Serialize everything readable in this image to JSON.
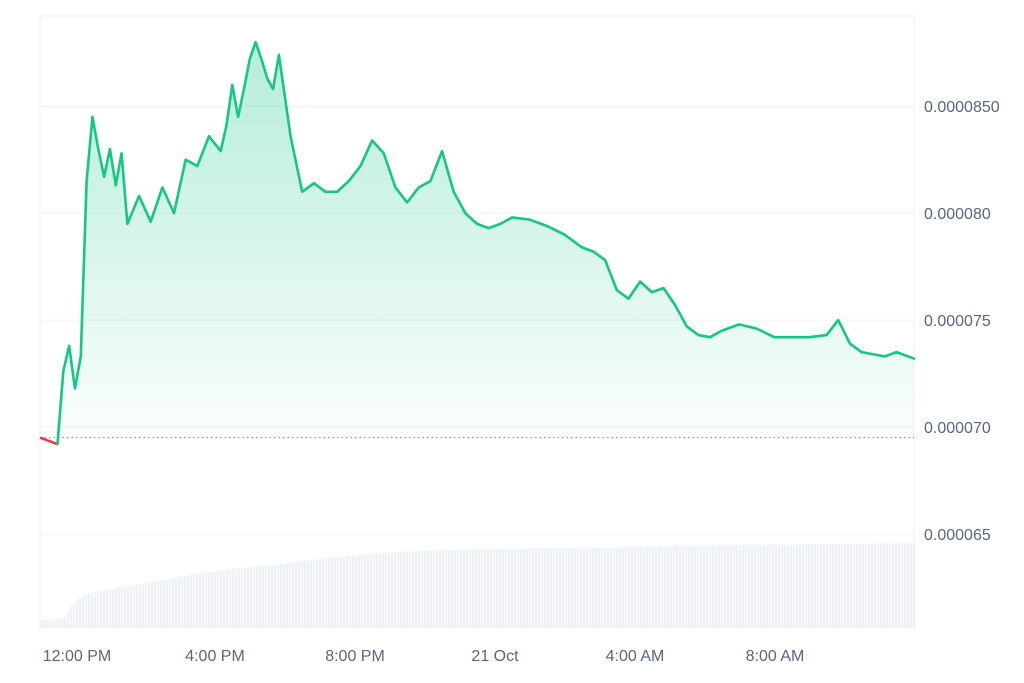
{
  "chart_data": {
    "type": "area",
    "x_axis_ticks": [
      "12:00 PM",
      "4:00 PM",
      "8:00 PM",
      "21 Oct",
      "4:00 AM",
      "8:00 AM"
    ],
    "y_axis_ticks": [
      "0.0000850",
      "0.000080",
      "0.000075",
      "0.000070",
      "0.000065"
    ],
    "y_tick_values": [
      8.5e-05,
      8e-05,
      7.5e-05,
      7e-05,
      6.5e-05
    ],
    "ylim": [
      6.06e-05,
      8.95e-05
    ],
    "x_start": "2023-10-20 11:30",
    "x_end": "2023-10-21 12:30",
    "reference_price": 6.95e-05,
    "grid": "horizontal",
    "colors": {
      "up_line": "#16c784",
      "down_line": "#ea3943",
      "fill_top": "#16c784",
      "grid": "#eff2f5",
      "volume": "#eff2f5",
      "text": "#58667e",
      "reference_line": "#808a9d"
    },
    "series": [
      {
        "x": [
          "2023-10-20 11:30",
          "2023-10-20 11:40",
          "2023-10-20 11:50",
          "2023-10-20 12:00",
          "2023-10-20 12:10",
          "2023-10-20 12:20",
          "2023-10-20 12:30",
          "2023-10-20 12:40",
          "2023-10-20 12:50",
          "2023-10-20 13:00",
          "2023-10-20 13:10",
          "2023-10-20 13:20",
          "2023-10-20 13:30",
          "2023-10-20 13:40",
          "2023-10-20 13:50",
          "2023-10-20 14:00",
          "2023-10-20 14:20",
          "2023-10-20 14:40",
          "2023-10-20 15:00",
          "2023-10-20 15:20",
          "2023-10-20 15:40",
          "2023-10-20 16:00",
          "2023-10-20 16:20",
          "2023-10-20 16:40",
          "2023-10-20 16:50",
          "2023-10-20 17:00",
          "2023-10-20 17:10",
          "2023-10-20 17:20",
          "2023-10-20 17:30",
          "2023-10-20 17:40",
          "2023-10-20 17:50",
          "2023-10-20 18:00",
          "2023-10-20 18:10",
          "2023-10-20 18:20",
          "2023-10-20 18:40",
          "2023-10-20 19:00",
          "2023-10-20 19:20",
          "2023-10-20 19:40",
          "2023-10-20 20:00",
          "2023-10-20 20:20",
          "2023-10-20 20:40",
          "2023-10-20 21:00",
          "2023-10-20 21:20",
          "2023-10-20 21:40",
          "2023-10-20 22:00",
          "2023-10-20 22:20",
          "2023-10-20 22:40",
          "2023-10-20 23:00",
          "2023-10-20 23:20",
          "2023-10-20 23:40",
          "2023-10-21 00:00",
          "2023-10-21 00:20",
          "2023-10-21 00:40",
          "2023-10-21 01:00",
          "2023-10-21 01:30",
          "2023-10-21 02:00",
          "2023-10-21 02:30",
          "2023-10-21 03:00",
          "2023-10-21 03:20",
          "2023-10-21 03:40",
          "2023-10-21 04:00",
          "2023-10-21 04:20",
          "2023-10-21 04:40",
          "2023-10-21 05:00",
          "2023-10-21 05:20",
          "2023-10-21 05:40",
          "2023-10-21 06:00",
          "2023-10-21 06:20",
          "2023-10-21 06:40",
          "2023-10-21 07:00",
          "2023-10-21 07:30",
          "2023-10-21 08:00",
          "2023-10-21 08:30",
          "2023-10-21 09:00",
          "2023-10-21 09:30",
          "2023-10-21 10:00",
          "2023-10-21 10:20",
          "2023-10-21 10:40",
          "2023-10-21 11:00",
          "2023-10-21 11:20",
          "2023-10-21 11:40",
          "2023-10-21 12:00",
          "2023-10-21 12:20",
          "2023-10-21 12:30"
        ],
        "y": [
          6.95e-05,
          6.94e-05,
          6.93e-05,
          6.92e-05,
          7.26e-05,
          7.38e-05,
          7.18e-05,
          7.33e-05,
          8.15e-05,
          8.45e-05,
          8.3e-05,
          8.17e-05,
          8.3e-05,
          8.13e-05,
          8.28e-05,
          7.95e-05,
          8.08e-05,
          7.96e-05,
          8.12e-05,
          8e-05,
          8.25e-05,
          8.22e-05,
          8.36e-05,
          8.29e-05,
          8.41e-05,
          8.6e-05,
          8.45e-05,
          8.58e-05,
          8.72e-05,
          8.8e-05,
          8.72e-05,
          8.63e-05,
          8.58e-05,
          8.74e-05,
          8.36e-05,
          8.1e-05,
          8.14e-05,
          8.1e-05,
          8.1e-05,
          8.15e-05,
          8.22e-05,
          8.34e-05,
          8.28e-05,
          8.12e-05,
          8.05e-05,
          8.12e-05,
          8.15e-05,
          8.29e-05,
          8.1e-05,
          8e-05,
          7.95e-05,
          7.93e-05,
          7.95e-05,
          7.98e-05,
          7.97e-05,
          7.94e-05,
          7.9e-05,
          7.84e-05,
          7.82e-05,
          7.78e-05,
          7.64e-05,
          7.6e-05,
          7.68e-05,
          7.63e-05,
          7.65e-05,
          7.57e-05,
          7.47e-05,
          7.43e-05,
          7.42e-05,
          7.45e-05,
          7.48e-05,
          7.46e-05,
          7.42e-05,
          7.42e-05,
          7.42e-05,
          7.43e-05,
          7.5e-05,
          7.39e-05,
          7.35e-05,
          7.34e-05,
          7.33e-05,
          7.35e-05,
          7.33e-05,
          7.32e-05
        ]
      }
    ],
    "volume": {
      "x": [
        "2023-10-20 11:30",
        "2023-10-20 12:10",
        "2023-10-20 12:20",
        "2023-10-20 12:40",
        "2023-10-20 13:00",
        "2023-10-20 14:00",
        "2023-10-20 15:00",
        "2023-10-20 16:00",
        "2023-10-20 17:00",
        "2023-10-20 18:00",
        "2023-10-20 19:00",
        "2023-10-20 20:00",
        "2023-10-20 21:00",
        "2023-10-20 22:00",
        "2023-10-20 23:00",
        "2023-10-21 00:00",
        "2023-10-21 02:00",
        "2023-10-21 04:00",
        "2023-10-21 06:00",
        "2023-10-21 08:00",
        "2023-10-21 10:00",
        "2023-10-21 12:00",
        "2023-10-21 12:30"
      ],
      "value": [
        0.1,
        0.12,
        0.25,
        0.4,
        0.45,
        0.52,
        0.6,
        0.68,
        0.74,
        0.78,
        0.84,
        0.89,
        0.93,
        0.96,
        0.97,
        0.98,
        1.0,
        1.01,
        1.03,
        1.04,
        1.05,
        1.06,
        1.06
      ]
    }
  }
}
